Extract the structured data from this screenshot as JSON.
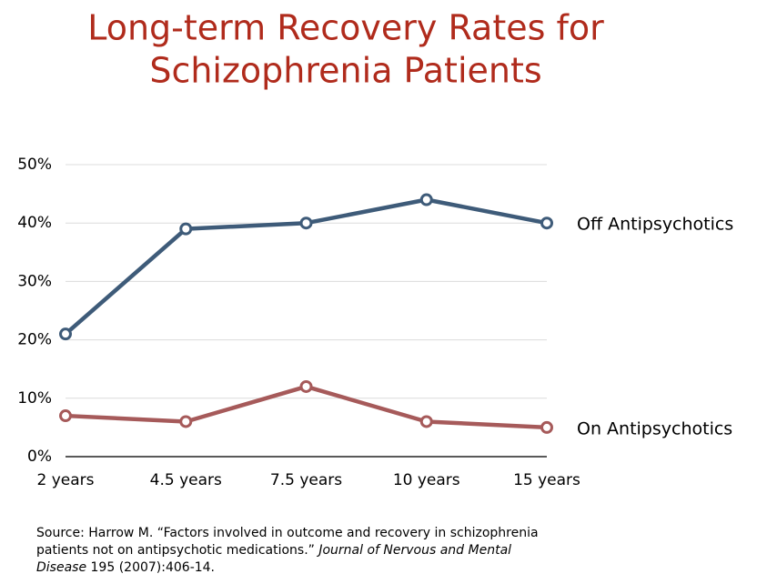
{
  "chart_data": {
    "type": "line",
    "title": [
      "Long-term Recovery Rates for",
      "Schizophrenia Patients"
    ],
    "categories": [
      "2 years",
      "4.5 years",
      "7.5 years",
      "10 years",
      "15 years"
    ],
    "series": [
      {
        "name": "Off Antipsychotics",
        "color": "#3e5b79",
        "values": [
          21,
          39,
          40,
          44,
          40
        ]
      },
      {
        "name": "On Antipsychotics",
        "color": "#a65a5a",
        "values": [
          7,
          6,
          12,
          6,
          5
        ]
      }
    ],
    "ylim": [
      0,
      50
    ],
    "yticks": [
      {
        "value": 0,
        "label": "0%"
      },
      {
        "value": 10,
        "label": "10%"
      },
      {
        "value": 20,
        "label": "20%"
      },
      {
        "value": 30,
        "label": "30%"
      },
      {
        "value": 40,
        "label": "40%"
      },
      {
        "value": 50,
        "label": "50%"
      }
    ],
    "grid": true,
    "source": [
      "Source: Harrow M. “Factors involved in outcome and recovery in schizophrenia patients not on antipsychotic medications.” ",
      "Journal of Nervous and Mental Disease",
      " 195 (2007):406-14."
    ]
  }
}
